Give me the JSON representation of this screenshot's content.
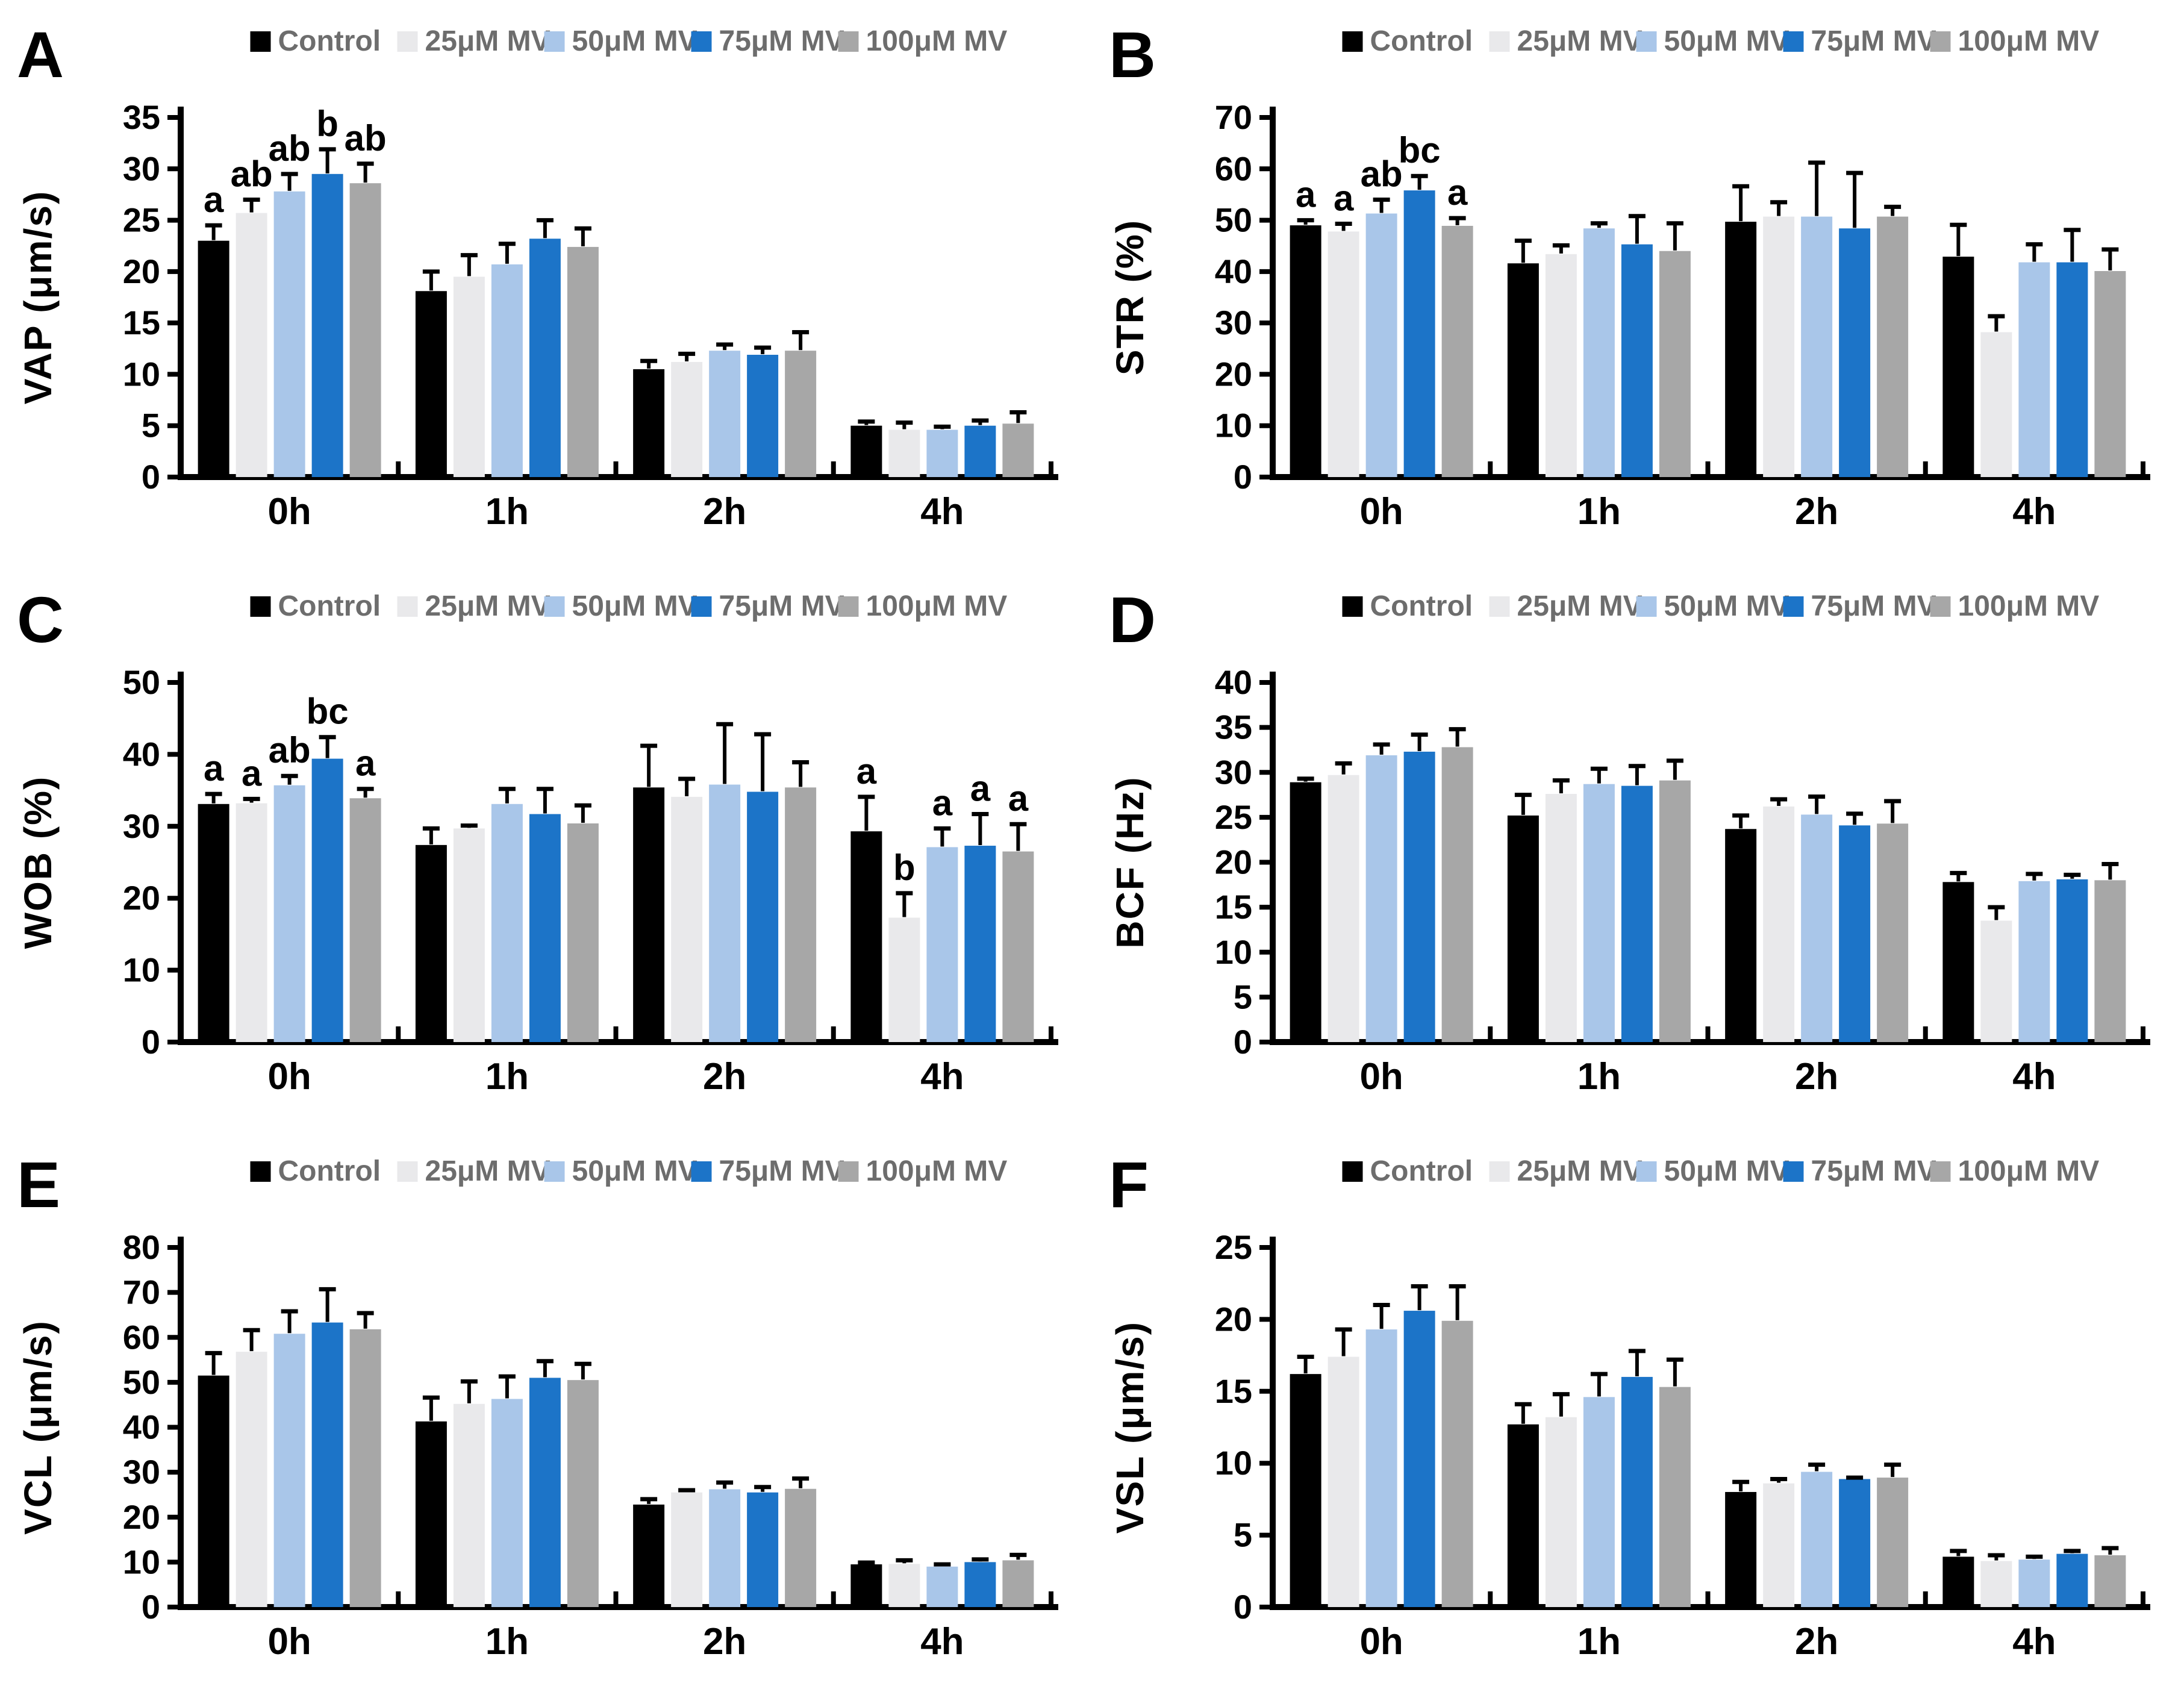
{
  "figure": {
    "background": "#ffffff",
    "axis_color": "#000000",
    "tick_text_color": "#000000",
    "sig_letter_color": "#000000"
  },
  "legend": {
    "text_color": "#6d6d6d",
    "items": [
      {
        "label": "Control",
        "color": "#000000"
      },
      {
        "label": "25μM MV",
        "color": "#e9e9eb"
      },
      {
        "label": "50μM MV",
        "color": "#a9c6e9"
      },
      {
        "label": "75μM MV",
        "color": "#1c74c8"
      },
      {
        "label": "100μM MV",
        "color": "#a7a7a7"
      }
    ]
  },
  "chart_data": [
    {
      "panel": "A",
      "type": "bar",
      "ylabel": "VAP (μm/s)",
      "xlabel": "",
      "ylim": [
        0,
        35
      ],
      "ytick_step": 5,
      "grid": false,
      "legend_position": "top",
      "categories": [
        "0h",
        "1h",
        "2h",
        "4h"
      ],
      "series": [
        {
          "name": "Control",
          "values": [
            23.0,
            18.1,
            10.5,
            5.0
          ],
          "errors": [
            1.5,
            1.9,
            0.8,
            0.4
          ]
        },
        {
          "name": "25μM MV",
          "values": [
            25.7,
            19.5,
            11.2,
            4.6
          ],
          "errors": [
            1.3,
            2.1,
            0.8,
            0.7
          ]
        },
        {
          "name": "50μM MV",
          "values": [
            27.8,
            20.7,
            12.3,
            4.6
          ],
          "errors": [
            1.7,
            2.0,
            0.6,
            0.3
          ]
        },
        {
          "name": "75μM MV",
          "values": [
            29.5,
            23.2,
            11.9,
            5.0
          ],
          "errors": [
            2.4,
            1.8,
            0.7,
            0.5
          ]
        },
        {
          "name": "100μM MV",
          "values": [
            28.6,
            22.4,
            12.3,
            5.2
          ],
          "errors": [
            1.9,
            1.8,
            1.8,
            1.1
          ]
        }
      ],
      "letters": {
        "0h": [
          "a",
          "ab",
          "ab",
          "b",
          "ab"
        ]
      }
    },
    {
      "panel": "B",
      "type": "bar",
      "ylabel": "STR (%)",
      "xlabel": "",
      "ylim": [
        0,
        70
      ],
      "ytick_step": 10,
      "grid": false,
      "legend_position": "top",
      "categories": [
        "0h",
        "1h",
        "2h",
        "4h"
      ],
      "series": [
        {
          "name": "Control",
          "values": [
            49.0,
            41.6,
            49.7,
            42.9
          ],
          "errors": [
            1.0,
            4.4,
            6.9,
            6.2
          ]
        },
        {
          "name": "25μM MV",
          "values": [
            47.8,
            43.4,
            50.7,
            28.2
          ],
          "errors": [
            1.5,
            1.7,
            2.8,
            3.1
          ]
        },
        {
          "name": "50μM MV",
          "values": [
            51.3,
            48.4,
            50.7,
            41.8
          ],
          "errors": [
            2.7,
            1.0,
            10.5,
            3.5
          ]
        },
        {
          "name": "75μM MV",
          "values": [
            55.8,
            45.3,
            48.4,
            41.8
          ],
          "errors": [
            2.8,
            5.5,
            10.8,
            6.3
          ]
        },
        {
          "name": "100μM MV",
          "values": [
            48.9,
            44.0,
            50.7,
            40.1
          ],
          "errors": [
            1.5,
            5.4,
            1.9,
            4.2
          ]
        }
      ],
      "letters": {
        "0h": [
          "a",
          "a",
          "ab",
          "bc",
          "a"
        ]
      }
    },
    {
      "panel": "C",
      "type": "bar",
      "ylabel": "WOB (%)",
      "xlabel": "",
      "ylim": [
        0,
        50
      ],
      "ytick_step": 10,
      "grid": false,
      "legend_position": "top",
      "categories": [
        "0h",
        "1h",
        "2h",
        "4h"
      ],
      "series": [
        {
          "name": "Control",
          "values": [
            33.1,
            27.4,
            35.4,
            29.3
          ],
          "errors": [
            1.4,
            2.3,
            5.8,
            4.8
          ]
        },
        {
          "name": "25μM MV",
          "values": [
            33.2,
            29.7,
            34.1,
            17.3
          ],
          "errors": [
            0.6,
            0.4,
            2.5,
            3.4
          ]
        },
        {
          "name": "50μM MV",
          "values": [
            35.7,
            33.1,
            35.8,
            27.1
          ],
          "errors": [
            1.3,
            2.1,
            8.4,
            2.6
          ]
        },
        {
          "name": "75μM MV",
          "values": [
            39.4,
            31.7,
            34.8,
            27.3
          ],
          "errors": [
            3.0,
            3.5,
            8.0,
            4.4
          ]
        },
        {
          "name": "100μM MV",
          "values": [
            33.9,
            30.4,
            35.4,
            26.5
          ],
          "errors": [
            1.3,
            2.5,
            3.5,
            3.8
          ]
        }
      ],
      "letters": {
        "0h": [
          "a",
          "a",
          "ab",
          "bc",
          "a"
        ],
        "4h": [
          "a",
          "b",
          "a",
          "a",
          "a"
        ]
      }
    },
    {
      "panel": "D",
      "type": "bar",
      "ylabel": "BCF (Hz)",
      "xlabel": "",
      "ylim": [
        0,
        40
      ],
      "ytick_step": 5,
      "grid": false,
      "legend_position": "top",
      "categories": [
        "0h",
        "1h",
        "2h",
        "4h"
      ],
      "series": [
        {
          "name": "Control",
          "values": [
            28.9,
            25.2,
            23.7,
            17.8
          ],
          "errors": [
            0.4,
            2.3,
            1.5,
            1.0
          ]
        },
        {
          "name": "25μM MV",
          "values": [
            29.7,
            27.6,
            26.2,
            13.5
          ],
          "errors": [
            1.3,
            1.5,
            0.8,
            1.5
          ]
        },
        {
          "name": "50μM MV",
          "values": [
            31.9,
            28.7,
            25.3,
            17.9
          ],
          "errors": [
            1.2,
            1.7,
            2.0,
            0.8
          ]
        },
        {
          "name": "75μM MV",
          "values": [
            32.3,
            28.5,
            24.1,
            18.1
          ],
          "errors": [
            1.9,
            2.2,
            1.3,
            0.5
          ]
        },
        {
          "name": "100μM MV",
          "values": [
            32.8,
            29.1,
            24.3,
            18.0
          ],
          "errors": [
            2.0,
            2.2,
            2.5,
            1.8
          ]
        }
      ],
      "letters": {}
    },
    {
      "panel": "E",
      "type": "bar",
      "ylabel": "VCL (μm/s)",
      "xlabel": "",
      "ylim": [
        0,
        80
      ],
      "ytick_step": 10,
      "grid": false,
      "legend_position": "top",
      "categories": [
        "0h",
        "1h",
        "2h",
        "4h"
      ],
      "series": [
        {
          "name": "Control",
          "values": [
            51.5,
            41.3,
            22.8,
            9.5
          ],
          "errors": [
            5.0,
            5.3,
            1.2,
            0.4
          ]
        },
        {
          "name": "25μM MV",
          "values": [
            56.8,
            45.2,
            25.5,
            9.6
          ],
          "errors": [
            4.8,
            5.0,
            0.5,
            0.8
          ]
        },
        {
          "name": "50μM MV",
          "values": [
            60.8,
            46.3,
            26.2,
            9.0
          ],
          "errors": [
            5.0,
            5.0,
            1.5,
            0.5
          ]
        },
        {
          "name": "75μM MV",
          "values": [
            63.3,
            51.0,
            25.5,
            10.0
          ],
          "errors": [
            7.4,
            3.7,
            1.2,
            0.6
          ]
        },
        {
          "name": "100μM MV",
          "values": [
            61.8,
            50.5,
            26.3,
            10.4
          ],
          "errors": [
            3.6,
            3.6,
            2.3,
            1.2
          ]
        }
      ],
      "letters": {}
    },
    {
      "panel": "F",
      "type": "bar",
      "ylabel": "VSL (μm/s)",
      "xlabel": "",
      "ylim": [
        0,
        25
      ],
      "ytick_step": 5,
      "grid": false,
      "legend_position": "top",
      "categories": [
        "0h",
        "1h",
        "2h",
        "4h"
      ],
      "series": [
        {
          "name": "Control",
          "values": [
            16.2,
            12.7,
            8.0,
            3.5
          ],
          "errors": [
            1.2,
            1.4,
            0.7,
            0.4
          ]
        },
        {
          "name": "25μM MV",
          "values": [
            17.4,
            13.2,
            8.6,
            3.2
          ],
          "errors": [
            1.9,
            1.6,
            0.3,
            0.4
          ]
        },
        {
          "name": "50μM MV",
          "values": [
            19.3,
            14.6,
            9.4,
            3.3
          ],
          "errors": [
            1.7,
            1.6,
            0.5,
            0.2
          ]
        },
        {
          "name": "75μM MV",
          "values": [
            20.6,
            16.0,
            8.9,
            3.7
          ],
          "errors": [
            1.7,
            1.8,
            0.1,
            0.2
          ]
        },
        {
          "name": "100μM MV",
          "values": [
            19.9,
            15.3,
            9.0,
            3.6
          ],
          "errors": [
            2.4,
            1.9,
            0.9,
            0.5
          ]
        }
      ],
      "letters": {}
    }
  ]
}
